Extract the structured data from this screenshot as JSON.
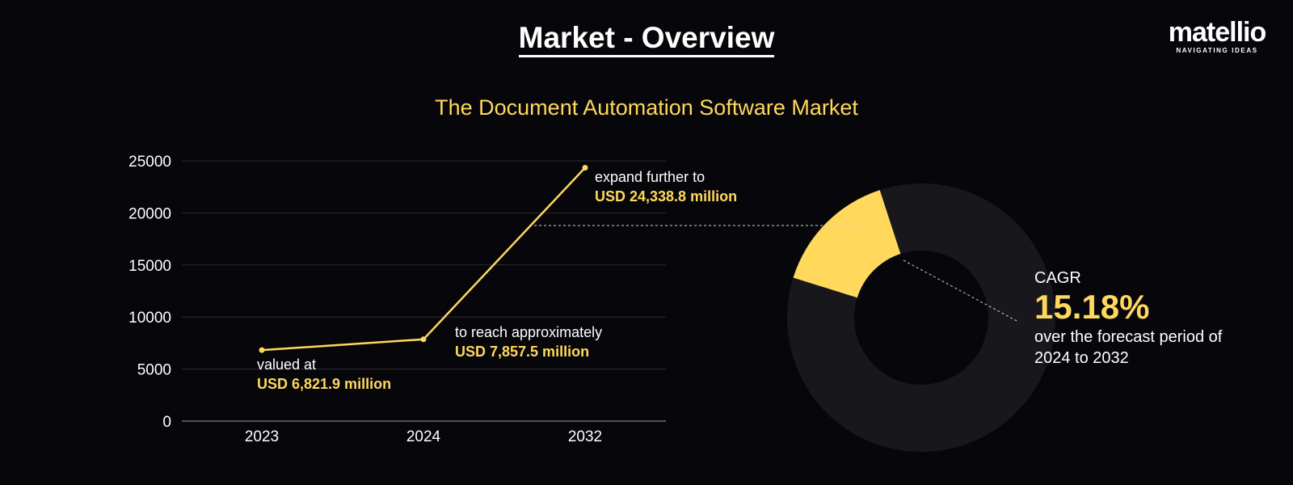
{
  "header": {
    "title": "Market - Overview"
  },
  "logo": {
    "name": "matellio",
    "tagline": "NAVIGATING IDEAS"
  },
  "colors": {
    "accent": "#ffd85c",
    "background": "#07070b",
    "ring": "#18181c"
  },
  "annotations": [
    {
      "text": "valued at",
      "value": "USD 6,821.9 million"
    },
    {
      "text": "to reach approximately",
      "value": "USD 7,857.5 million"
    },
    {
      "text": "expand further to",
      "value": "USD 24,338.8 million"
    }
  ],
  "cagr": {
    "label": "CAGR",
    "value": "15.18%",
    "description": "over the forecast period of 2024 to 2032",
    "fraction": 0.1518
  },
  "chart_data": {
    "type": "line",
    "title": "The Document Automation Software Market",
    "categories": [
      "2023",
      "2024",
      "2032"
    ],
    "series": [
      {
        "values": [
          6821.9,
          7857.5,
          24338.8
        ]
      }
    ],
    "ylim": [
      0,
      25000
    ],
    "yticks": [
      0,
      5000,
      10000,
      15000,
      20000,
      25000
    ],
    "grid": true
  }
}
